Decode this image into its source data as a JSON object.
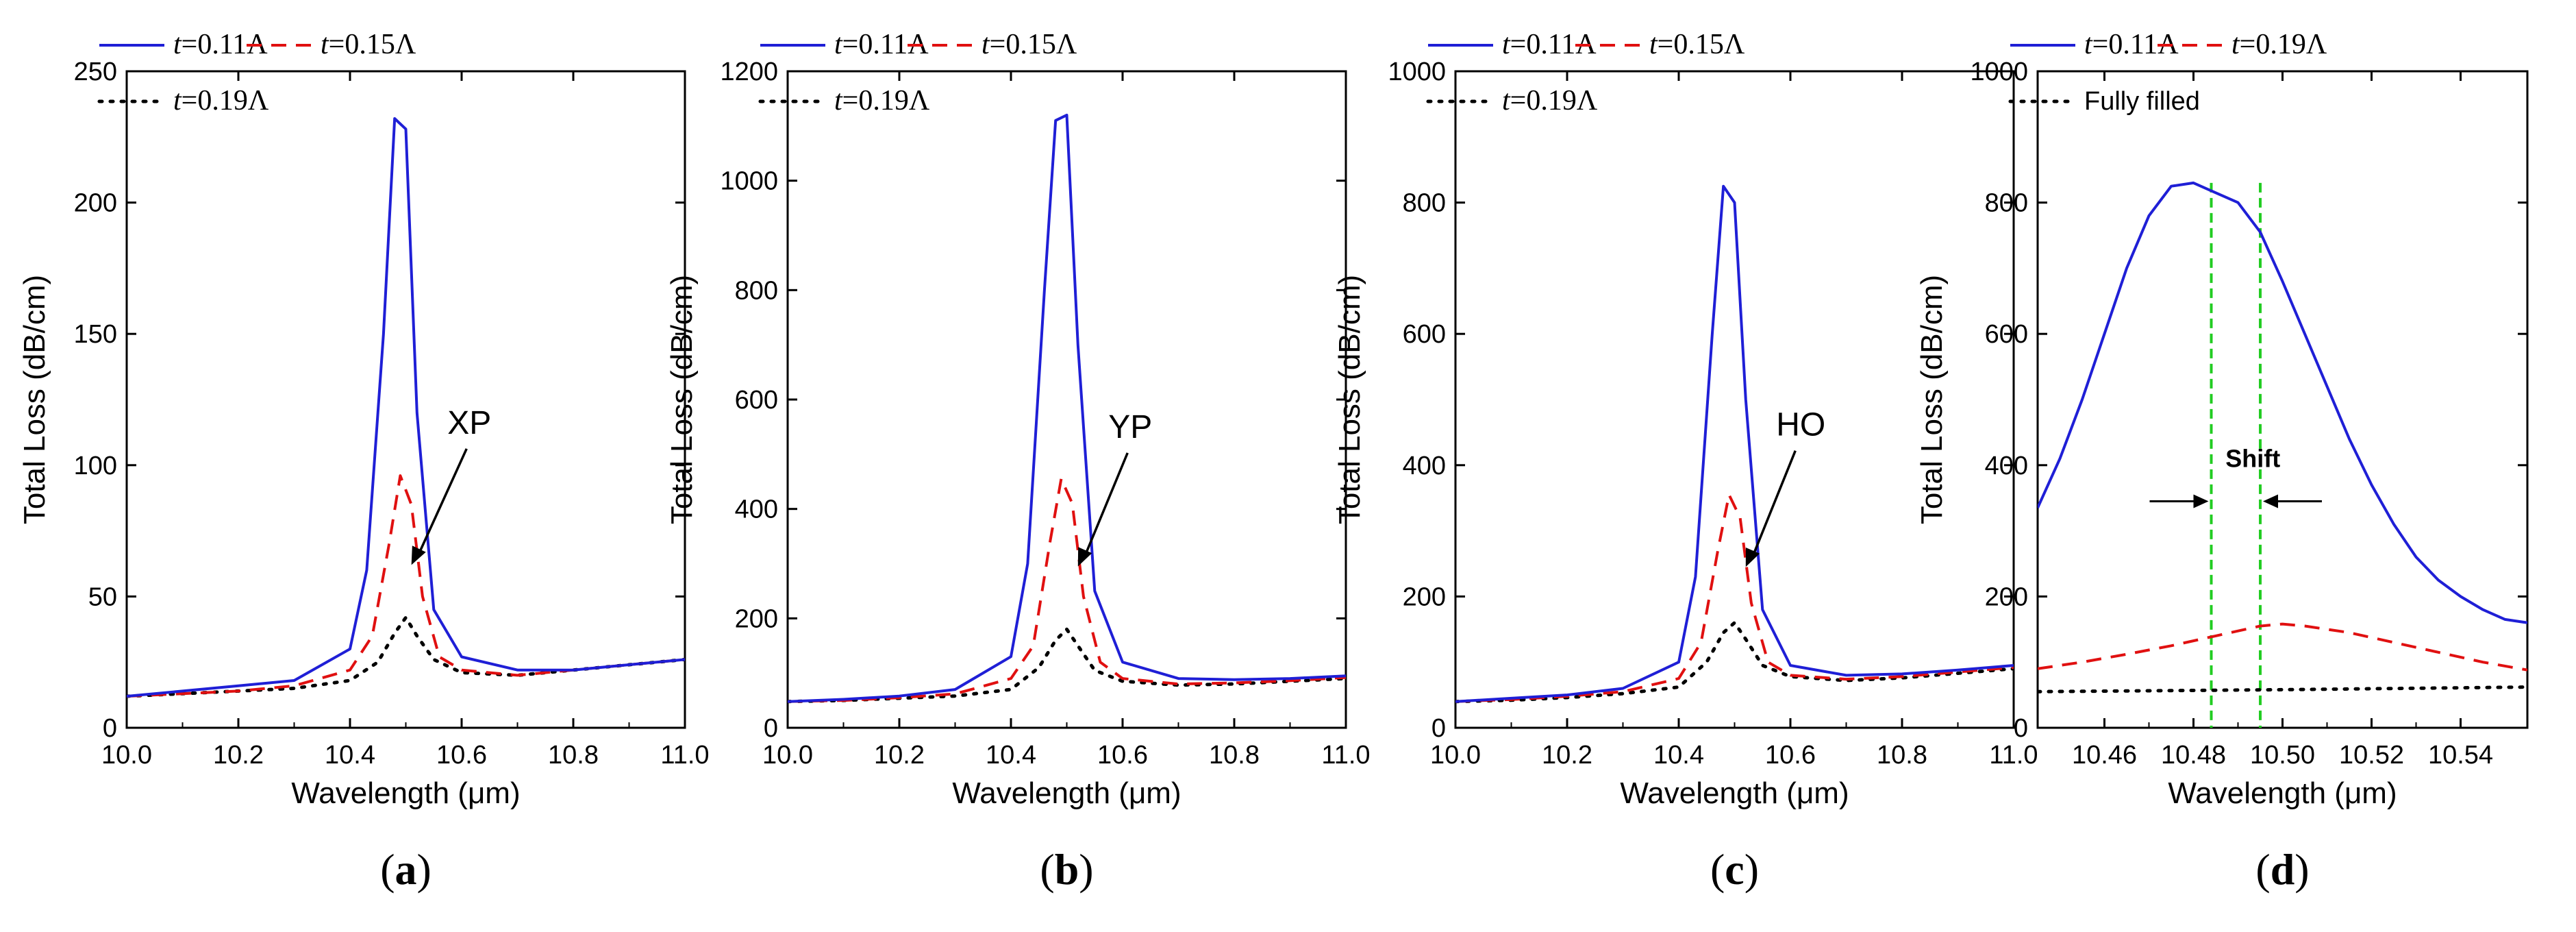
{
  "colors": {
    "series_1": "#1f1fd6",
    "series_2": "#e01010",
    "series_3": "#000000",
    "guide": "#22cc22"
  },
  "chart_data": [
    {
      "type": "line",
      "panel_label": "a",
      "xlabel": "Wavelength (μm)",
      "ylabel": "Total Loss (dB/cm)",
      "xlim": [
        10.0,
        11.0
      ],
      "ylim": [
        0,
        250
      ],
      "xticks": [
        "10.0",
        "10.2",
        "10.4",
        "10.6",
        "10.8",
        "11.0"
      ],
      "yticks": [
        "0",
        "50",
        "100",
        "150",
        "200",
        "250"
      ],
      "annotation": {
        "text": "XP",
        "x": 10.55,
        "y": 112,
        "arrow_to": [
          10.51,
          62
        ]
      },
      "series": [
        {
          "name": "t=0.11Λ",
          "t": "t",
          "rest": "=0.11Λ",
          "style": "solid",
          "x": [
            10.0,
            10.1,
            10.2,
            10.3,
            10.4,
            10.43,
            10.46,
            10.48,
            10.5,
            10.52,
            10.55,
            10.6,
            10.7,
            10.8,
            10.9,
            11.0
          ],
          "y": [
            12,
            14,
            16,
            18,
            30,
            60,
            150,
            232,
            228,
            120,
            45,
            27,
            22,
            22,
            24,
            26
          ]
        },
        {
          "name": "t=0.15Λ",
          "t": "t",
          "rest": "=0.15Λ",
          "style": "dashed",
          "x": [
            10.0,
            10.1,
            10.2,
            10.3,
            10.4,
            10.44,
            10.47,
            10.49,
            10.51,
            10.53,
            10.56,
            10.6,
            10.7,
            10.8,
            10.9,
            11.0
          ],
          "y": [
            12,
            13,
            14,
            16,
            22,
            35,
            70,
            96,
            85,
            50,
            27,
            22,
            20,
            22,
            24,
            26
          ]
        },
        {
          "name": "t=0.19Λ",
          "t": "t",
          "rest": "=0.19Λ",
          "style": "dotted",
          "x": [
            10.0,
            10.1,
            10.2,
            10.3,
            10.4,
            10.45,
            10.48,
            10.5,
            10.52,
            10.55,
            10.6,
            10.7,
            10.8,
            10.9,
            11.0
          ],
          "y": [
            12,
            13,
            14,
            15,
            18,
            25,
            36,
            42,
            35,
            26,
            21,
            20,
            22,
            24,
            26
          ]
        }
      ]
    },
    {
      "type": "line",
      "panel_label": "b",
      "xlabel": "Wavelength (μm)",
      "ylabel": "Total Loss (dB/cm)",
      "xlim": [
        10.0,
        11.0
      ],
      "ylim": [
        0,
        1200
      ],
      "xticks": [
        "10.0",
        "10.2",
        "10.4",
        "10.6",
        "10.8",
        "11.0"
      ],
      "yticks": [
        "0",
        "200",
        "400",
        "600",
        "800",
        "1000",
        "1200"
      ],
      "annotation": {
        "text": "YP",
        "x": 10.55,
        "y": 530,
        "arrow_to": [
          10.52,
          295
        ]
      },
      "series": [
        {
          "name": "t=0.11Λ",
          "t": "t",
          "rest": "=0.11Λ",
          "style": "solid",
          "x": [
            10.0,
            10.1,
            10.2,
            10.3,
            10.4,
            10.43,
            10.46,
            10.48,
            10.5,
            10.52,
            10.55,
            10.6,
            10.7,
            10.8,
            10.9,
            11.0
          ],
          "y": [
            48,
            52,
            58,
            70,
            130,
            300,
            800,
            1110,
            1120,
            700,
            250,
            120,
            90,
            88,
            90,
            95
          ]
        },
        {
          "name": "t=0.15Λ",
          "t": "t",
          "rest": "=0.15Λ",
          "style": "dashed",
          "x": [
            10.0,
            10.1,
            10.2,
            10.3,
            10.4,
            10.44,
            10.47,
            10.49,
            10.51,
            10.53,
            10.56,
            10.6,
            10.7,
            10.8,
            10.9,
            11.0
          ],
          "y": [
            48,
            50,
            55,
            62,
            90,
            150,
            340,
            455,
            410,
            240,
            120,
            90,
            80,
            82,
            86,
            92
          ]
        },
        {
          "name": "t=0.19Λ",
          "t": "t",
          "rest": "=0.19Λ",
          "style": "dotted",
          "x": [
            10.0,
            10.1,
            10.2,
            10.3,
            10.4,
            10.45,
            10.48,
            10.5,
            10.52,
            10.55,
            10.6,
            10.7,
            10.8,
            10.9,
            11.0
          ],
          "y": [
            48,
            50,
            54,
            58,
            70,
            110,
            160,
            180,
            150,
            105,
            85,
            78,
            80,
            85,
            90
          ]
        }
      ]
    },
    {
      "type": "line",
      "panel_label": "c",
      "xlabel": "Wavelength (μm)",
      "ylabel": "Total Loss (dB/cm)",
      "xlim": [
        10.0,
        11.0
      ],
      "ylim": [
        0,
        1000
      ],
      "xticks": [
        "10.0",
        "10.2",
        "10.4",
        "10.6",
        "10.8",
        "11.0"
      ],
      "yticks": [
        "0",
        "200",
        "400",
        "600",
        "800",
        "1000"
      ],
      "annotation": {
        "text": "HO",
        "x": 10.55,
        "y": 445,
        "arrow_to": [
          10.52,
          245
        ]
      },
      "series": [
        {
          "name": "t=0.11Λ",
          "t": "t",
          "rest": "=0.11Λ",
          "style": "solid",
          "x": [
            10.0,
            10.1,
            10.2,
            10.3,
            10.4,
            10.43,
            10.46,
            10.48,
            10.5,
            10.52,
            10.55,
            10.6,
            10.7,
            10.8,
            10.9,
            11.0
          ],
          "y": [
            40,
            45,
            50,
            60,
            100,
            230,
            600,
            825,
            800,
            500,
            180,
            95,
            80,
            82,
            88,
            95
          ]
        },
        {
          "name": "t=0.15Λ",
          "t": "t",
          "rest": "=0.15Λ",
          "style": "dashed",
          "x": [
            10.0,
            10.1,
            10.2,
            10.3,
            10.4,
            10.44,
            10.47,
            10.49,
            10.51,
            10.53,
            10.56,
            10.6,
            10.7,
            10.8,
            10.9,
            11.0
          ],
          "y": [
            40,
            43,
            48,
            55,
            75,
            130,
            270,
            355,
            320,
            190,
            100,
            80,
            74,
            78,
            85,
            92
          ]
        },
        {
          "name": "t=0.19Λ",
          "t": "t",
          "rest": "=0.19Λ",
          "style": "dotted",
          "x": [
            10.0,
            10.1,
            10.2,
            10.3,
            10.4,
            10.45,
            10.48,
            10.5,
            10.52,
            10.55,
            10.6,
            10.7,
            10.8,
            10.9,
            11.0
          ],
          "y": [
            40,
            42,
            46,
            52,
            62,
            100,
            145,
            160,
            135,
            95,
            78,
            72,
            76,
            83,
            90
          ]
        }
      ]
    },
    {
      "type": "line",
      "panel_label": "d",
      "xlabel": "Wavelength (μm)",
      "ylabel": "Total Loss (dB/cm)",
      "xlim": [
        10.445,
        10.555
      ],
      "ylim": [
        0,
        1000
      ],
      "xticks": [
        "10.46",
        "10.48",
        "10.50",
        "10.52",
        "10.54"
      ],
      "xtick_values": [
        10.46,
        10.48,
        10.5,
        10.52,
        10.54
      ],
      "yticks": [
        "0",
        "200",
        "400",
        "600",
        "800",
        "1000"
      ],
      "guides": [
        10.484,
        10.495
      ],
      "shift_label": "Shift",
      "shift_y": 345,
      "series": [
        {
          "name": "t=0.11Λ",
          "t": "t",
          "rest": "=0.11Λ",
          "style": "solid",
          "x": [
            10.445,
            10.45,
            10.455,
            10.46,
            10.465,
            10.47,
            10.475,
            10.48,
            10.484,
            10.49,
            10.495,
            10.5,
            10.505,
            10.51,
            10.515,
            10.52,
            10.525,
            10.53,
            10.535,
            10.54,
            10.545,
            10.55,
            10.555
          ],
          "y": [
            335,
            410,
            500,
            600,
            700,
            780,
            825,
            830,
            818,
            800,
            755,
            680,
            600,
            520,
            440,
            370,
            310,
            260,
            225,
            200,
            180,
            165,
            160
          ]
        },
        {
          "name": "t=0.19Λ",
          "t": "t",
          "rest": "=0.19Λ",
          "style": "dashed",
          "x": [
            10.445,
            10.455,
            10.465,
            10.475,
            10.485,
            10.495,
            10.5,
            10.505,
            10.515,
            10.525,
            10.535,
            10.545,
            10.555
          ],
          "y": [
            90,
            100,
            112,
            125,
            140,
            155,
            158,
            155,
            145,
            130,
            115,
            100,
            88
          ]
        },
        {
          "name": "Fully filled",
          "t": "",
          "rest": "Fully filled",
          "style": "dotted",
          "x": [
            10.445,
            10.5,
            10.555
          ],
          "y": [
            55,
            58,
            62
          ]
        }
      ]
    }
  ]
}
